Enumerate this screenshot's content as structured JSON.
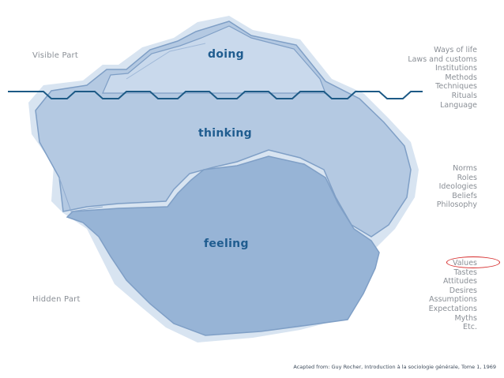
{
  "labels": {
    "visible_part": "Visible Part",
    "hidden_part": "Hidden Part"
  },
  "layers": {
    "doing": "doing",
    "thinking": "thinking",
    "feeling": "feeling"
  },
  "lists": {
    "doing_items": [
      "Ways of life",
      "Laws and customs",
      "Institutions",
      "Methods",
      "Techniques",
      "Rituals",
      "Language"
    ],
    "thinking_items": [
      "Norms",
      "Roles",
      "Ideologies",
      "Beliefs",
      "Philosophy"
    ],
    "feeling_highlighted": "Values",
    "feeling_items": [
      "Tastes",
      "Attitudes",
      "Desires",
      "Assumptions",
      "Expectations",
      "Myths",
      "Etc."
    ]
  },
  "credit": "Acapted from: Guy Rocher, Introduction à la sociologie générale, Tome 1, 1969",
  "colors": {
    "ice_light": "#c5d6e9",
    "ice_mid": "#a9c2de",
    "ice_deep": "#90b0d4",
    "outline": "#7f9fc6",
    "waterline": "#1d5a86",
    "highlight_ring": "#d62a2a"
  }
}
